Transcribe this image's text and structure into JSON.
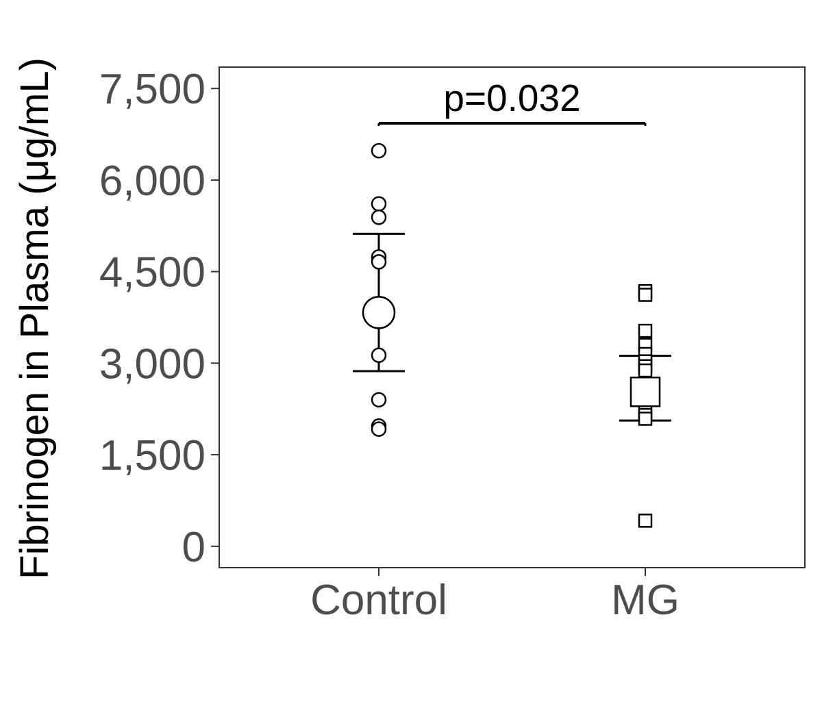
{
  "chart_data": {
    "type": "scatter",
    "title": "",
    "xlabel": "",
    "ylabel": "Fibrinogen in Plasma (μg/mL)",
    "categories": [
      "Control",
      "MG"
    ],
    "ylim": [
      -350,
      7850
    ],
    "yticks": [
      0,
      1500,
      3000,
      4500,
      6000,
      7500
    ],
    "ytick_labels": [
      "0",
      "1,500",
      "3,000",
      "4,500",
      "6,000",
      "7,500"
    ],
    "grid": false,
    "legend": "none",
    "series": [
      {
        "category": "Control",
        "marker": "circle",
        "points": [
          6480,
          5610,
          5390,
          4740,
          4660,
          3130,
          2400,
          1970,
          1920
        ],
        "mean": 3830,
        "error_low": 2870,
        "error_high": 5120
      },
      {
        "category": "MG",
        "marker": "square",
        "points": [
          4180,
          4120,
          3530,
          3300,
          3150,
          3030,
          2950,
          2880,
          2220,
          2150,
          2090,
          420
        ],
        "mean": 2530,
        "error_low": 2060,
        "error_high": 3120
      }
    ],
    "annotations": [
      {
        "text": "p=0.032",
        "from": "Control",
        "to": "MG",
        "y": 6930
      }
    ]
  }
}
